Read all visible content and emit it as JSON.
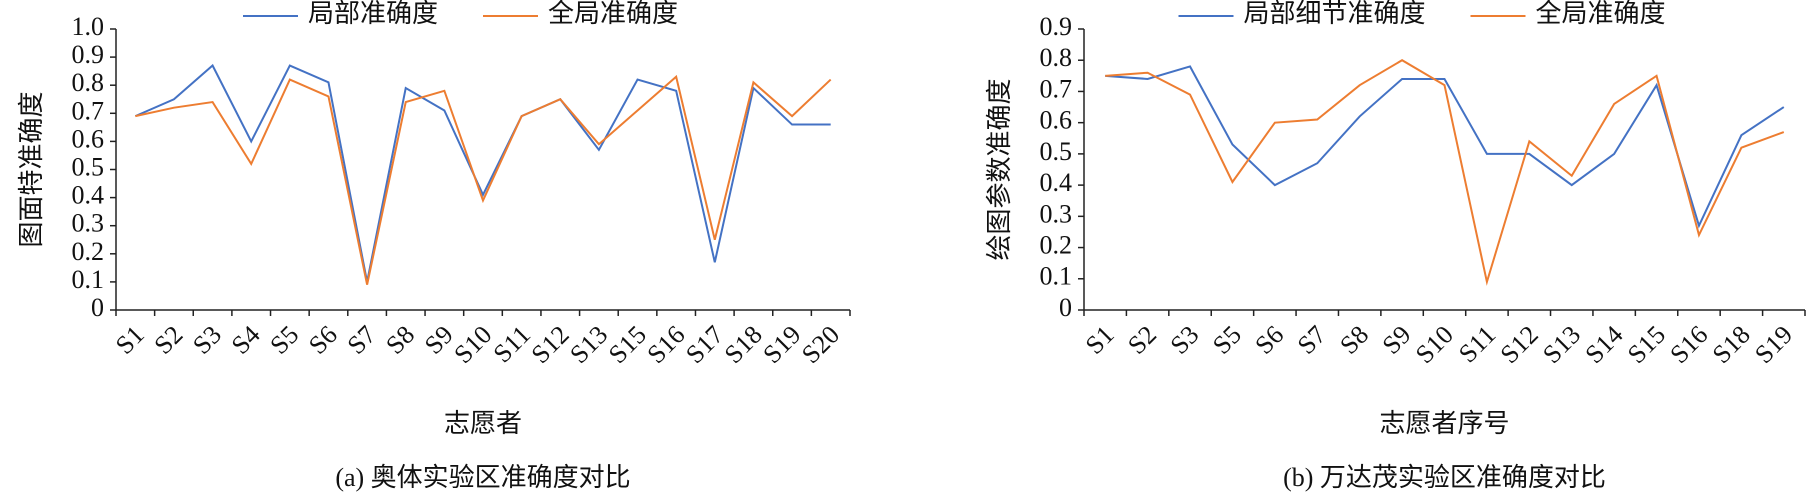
{
  "chart_data": [
    {
      "type": "line",
      "title": "(a) 奥体实验区准确度对比",
      "x_label": "志愿者",
      "y_label": "图面特准确度",
      "categories": [
        "S1",
        "S2",
        "S3",
        "S4",
        "S5",
        "S6",
        "S7",
        "S8",
        "S9",
        "S10",
        "S11",
        "S12",
        "S13",
        "S15",
        "S16",
        "S17",
        "S18",
        "S19",
        "S20"
      ],
      "series": [
        {
          "name": "局部准确度",
          "color": "#4472c4",
          "values": [
            0.69,
            0.75,
            0.87,
            0.6,
            0.87,
            0.81,
            0.1,
            0.79,
            0.71,
            0.41,
            0.69,
            0.75,
            0.57,
            0.82,
            0.78,
            0.17,
            0.79,
            0.66,
            0.66
          ]
        },
        {
          "name": "全局准确度",
          "color": "#ed7d31",
          "values": [
            0.69,
            0.72,
            0.74,
            0.52,
            0.82,
            0.76,
            0.09,
            0.74,
            0.78,
            0.39,
            0.69,
            0.75,
            0.59,
            0.71,
            0.83,
            0.25,
            0.81,
            0.69,
            0.82
          ]
        }
      ],
      "ylim": [
        0,
        1
      ],
      "yticks": [
        0,
        0.1,
        0.2,
        0.3,
        0.4,
        0.5,
        0.6,
        0.7,
        0.8,
        0.9,
        {
          "value": 1,
          "label": "1.0"
        }
      ],
      "legend": "top",
      "grid": false
    },
    {
      "type": "line",
      "title": "(b) 万达茂实验区准确度对比",
      "x_label": "志愿者序号",
      "y_label": "绘图参数准确度",
      "categories": [
        "S1",
        "S2",
        "S3",
        "S5",
        "S6",
        "S7",
        "S8",
        "S9",
        "S10",
        "S11",
        "S12",
        "S13",
        "S14",
        "S15",
        "S16",
        "S18",
        "S19"
      ],
      "series": [
        {
          "name": "局部细节准确度",
          "color": "#4472c4",
          "values": [
            0.75,
            0.74,
            0.78,
            0.53,
            0.4,
            0.47,
            0.62,
            0.74,
            0.74,
            0.5,
            0.5,
            0.4,
            0.5,
            0.72,
            0.27,
            0.56,
            0.65
          ]
        },
        {
          "name": "全局准确度",
          "color": "#ed7d31",
          "values": [
            0.75,
            0.76,
            0.69,
            0.41,
            0.6,
            0.61,
            0.72,
            0.8,
            0.72,
            0.09,
            0.54,
            0.43,
            0.66,
            0.75,
            0.24,
            0.52,
            0.57
          ]
        }
      ],
      "ylim": [
        0,
        0.9
      ],
      "yticks": [
        0,
        0.1,
        0.2,
        0.3,
        0.4,
        0.5,
        0.6,
        0.7,
        0.8,
        0.9
      ],
      "legend": "top",
      "grid": false
    }
  ]
}
